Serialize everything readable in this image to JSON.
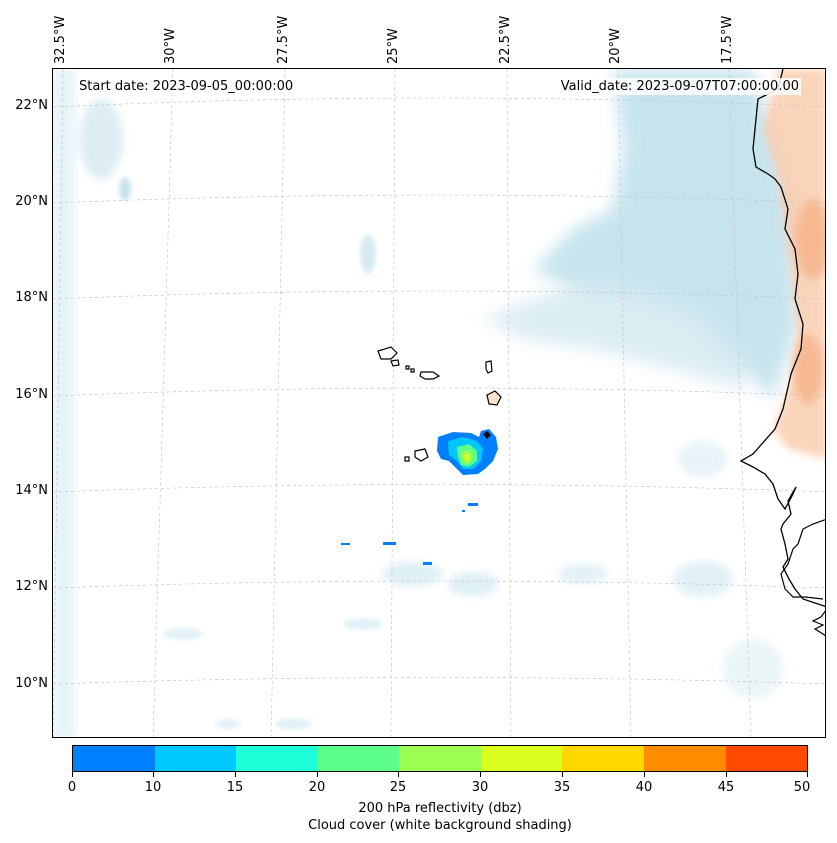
{
  "map": {
    "start_date": "Start date: 2023-09-05_00:00:00",
    "valid_date": "Valid_date: 2023-09-07T07:00:00.00",
    "longitude_labels": [
      "32.5°W",
      "30°W",
      "27.5°W",
      "25°W",
      "22.5°W",
      "20°W",
      "17.5°W"
    ],
    "latitude_labels": [
      "22°N",
      "20°N",
      "18°N",
      "16°N",
      "14°N",
      "12°N",
      "10°N"
    ]
  },
  "colorbar": {
    "ticks": [
      "0",
      "10",
      "15",
      "20",
      "25",
      "30",
      "35",
      "40",
      "45",
      "50"
    ],
    "colors": [
      "#0080ff",
      "#00c8ff",
      "#1effd8",
      "#5cff8a",
      "#9cff52",
      "#d8ff1e",
      "#ffd800",
      "#ff8c00",
      "#ff4a00"
    ],
    "label_reflectivity": "200 hPa reflectivity (dbz)",
    "label_cloud": "Cloud cover (white background shading)"
  }
}
